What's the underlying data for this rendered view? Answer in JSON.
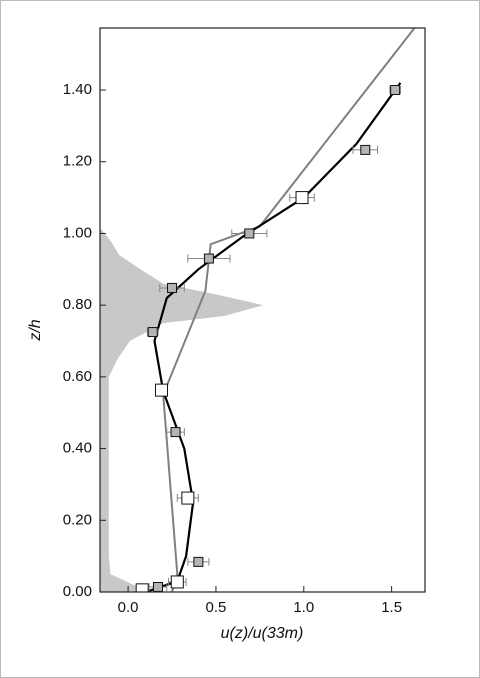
{
  "chart_data": {
    "type": "scatter",
    "xlabel": "u(z)/u(33m)",
    "ylabel": "z/h",
    "xlim": [
      -0.16,
      1.69
    ],
    "ylim": [
      0,
      1.573
    ],
    "xticks": [
      {
        "value": 0,
        "label": "0.0"
      },
      0.5,
      {
        "value": 1,
        "label": "1.0"
      },
      1.5
    ],
    "yticks": [
      {
        "value": 0,
        "label": "0.00"
      },
      {
        "value": 0.2,
        "label": "0.20"
      },
      {
        "value": 0.4,
        "label": "0.40"
      },
      {
        "value": 0.6,
        "label": "0.60"
      },
      {
        "value": 0.8,
        "label": "0.80"
      },
      {
        "value": 1,
        "label": "1.00"
      },
      {
        "value": 1.2,
        "label": "1.20"
      },
      {
        "value": 1.4,
        "label": "1.40"
      }
    ],
    "series": [
      {
        "style": "area",
        "color": "#c8c8c8",
        "x": [
          0.12,
          -0.1,
          -0.11,
          -0.11,
          -0.06,
          0.01,
          0.2,
          0.55,
          0.77,
          0.5,
          0.2,
          0.07,
          -0.05,
          -0.1,
          -0.16
        ],
        "y": [
          0.0,
          0.05,
          0.1,
          0.6,
          0.65,
          0.7,
          0.75,
          0.77,
          0.8,
          0.83,
          0.86,
          0.9,
          0.94,
          0.98,
          1.015
        ]
      },
      {
        "style": "line",
        "color": "#808080",
        "x": [
          0.25,
          0.28,
          0.2,
          0.44,
          0.47,
          0.75,
          1.63
        ],
        "y": [
          0.0,
          0.05,
          0.55,
          0.84,
          0.97,
          1.02,
          1.573
        ]
      },
      {
        "style": "line",
        "color": "#000000",
        "x": [
          0.1,
          0.28,
          0.33,
          0.37,
          0.32,
          0.2,
          0.15,
          0.22,
          0.4,
          0.65,
          1.0,
          1.3,
          1.55
        ],
        "y": [
          0.0,
          0.03,
          0.1,
          0.25,
          0.4,
          0.56,
          0.7,
          0.82,
          0.9,
          0.99,
          1.1,
          1.25,
          1.42
        ]
      },
      {
        "style": "markers",
        "color": "#b4b4b4",
        "size": 9,
        "x": [
          1.52,
          1.35,
          0.69,
          0.46,
          0.25,
          0.14,
          0.27,
          0.4,
          0.17
        ],
        "y": [
          1.4,
          1.233,
          1.0,
          0.93,
          0.848,
          0.725,
          0.446,
          0.084,
          0.014
        ],
        "xerr": [
          0.03,
          0.07,
          0.1,
          0.12,
          0.07,
          0.03,
          0.05,
          0.06,
          0.05
        ]
      },
      {
        "style": "markers",
        "color": "#ffffff",
        "size": 12,
        "x": [
          0.99,
          0.19,
          0.34,
          0.28,
          0.08
        ],
        "y": [
          1.1,
          0.563,
          0.262,
          0.028,
          0.006
        ],
        "xerr": [
          0.07,
          0.03,
          0.06,
          0.05,
          0.03
        ]
      }
    ]
  }
}
